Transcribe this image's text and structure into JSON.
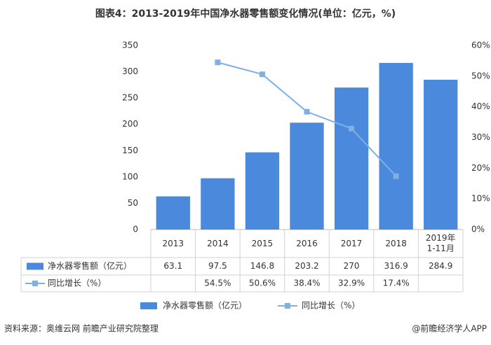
{
  "chart_data": {
    "type": "bar-line",
    "title": "图表4：2013-2019年中国净水器零售额变化情况(单位：亿元，%)",
    "categories": [
      "2013",
      "2014",
      "2015",
      "2016",
      "2017",
      "2018",
      "2019年1-11月"
    ],
    "series": [
      {
        "name": "净水器零售额（亿元）",
        "type": "bar",
        "color": "#4a89dc",
        "values": [
          63.1,
          97.5,
          146.8,
          203.2,
          270,
          316.9,
          284.9
        ]
      },
      {
        "name": "同比增长（%）",
        "type": "line",
        "axis": "y2",
        "color": "#7eb0e3",
        "values": [
          null,
          54.5,
          50.6,
          38.4,
          32.9,
          17.4,
          null
        ],
        "value_labels": [
          null,
          "54.5%",
          "50.6%",
          "38.4%",
          "32.9%",
          "17.4%",
          null
        ]
      }
    ],
    "ylim": [
      0,
      350
    ],
    "yticks": [
      0,
      50,
      100,
      150,
      200,
      250,
      300,
      350
    ],
    "y2lim": [
      0,
      60
    ],
    "y2ticks": [
      {
        "value": 0,
        "label": "0%"
      },
      {
        "value": 10,
        "label": "10%"
      },
      {
        "value": 20,
        "label": "20%"
      },
      {
        "value": 30,
        "label": "30%"
      },
      {
        "value": 40,
        "label": "40%"
      },
      {
        "value": 50,
        "label": "50%"
      },
      {
        "value": 60,
        "label": "60%"
      }
    ],
    "source": "资料来源：奥维云网 前瞻产业研究院整理",
    "credit": "@前瞻经济学人APP"
  }
}
